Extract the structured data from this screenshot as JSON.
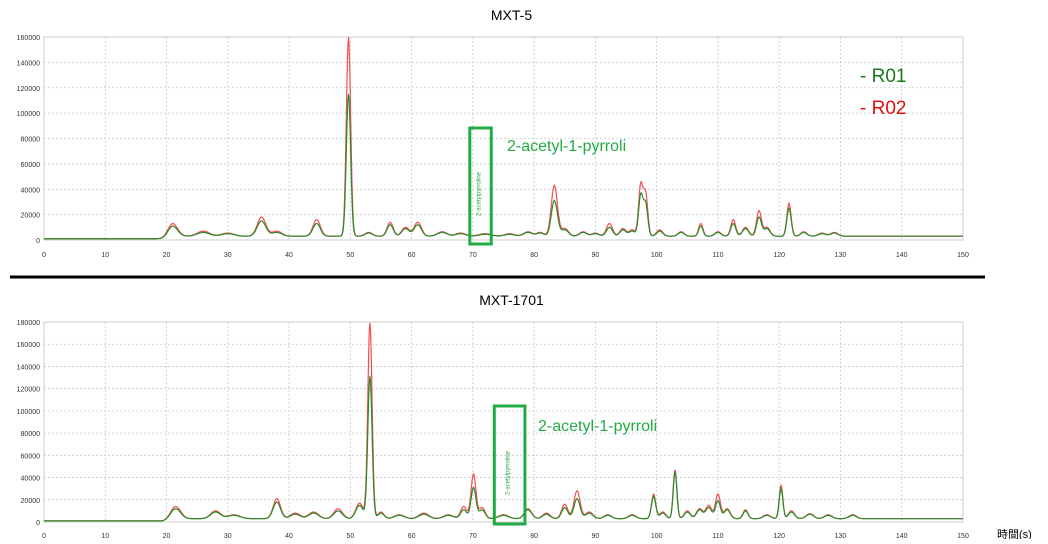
{
  "legend": [
    {
      "label": "- R01",
      "color": "#1a7a1a"
    },
    {
      "label": "- R02",
      "color": "#e01010"
    }
  ],
  "x_unit_label": "時間(s)",
  "colors": {
    "highlight": "#22aa44",
    "r01": "#2a8a2a",
    "r02": "#f05050",
    "grid": "#c8c8c8",
    "divider": "#000000"
  },
  "chart_data": [
    {
      "type": "line",
      "title": "MXT-5",
      "xlim": [
        0,
        150
      ],
      "ylim": [
        0,
        160000
      ],
      "x_ticks": [
        0,
        10,
        20,
        30,
        40,
        50,
        60,
        70,
        80,
        90,
        100,
        110,
        120,
        130,
        140,
        150
      ],
      "y_ticks": [
        0,
        20000,
        40000,
        60000,
        80000,
        100000,
        120000,
        140000,
        160000
      ],
      "annotation": {
        "label": "2-acetyl-1-pyrroli",
        "marker_text": "2-acetylpyrroline",
        "x_range": [
          69.5,
          73
        ]
      },
      "series": [
        {
          "name": "R01",
          "peaks": [
            [
              21,
              8000,
              0.8
            ],
            [
              26,
              3000,
              1
            ],
            [
              30,
              2000,
              1
            ],
            [
              35.5,
              12000,
              0.7
            ],
            [
              38,
              3000,
              0.8
            ],
            [
              44.5,
              10000,
              0.6
            ],
            [
              49.7,
              112000,
              0.35
            ],
            [
              53,
              2500,
              0.6
            ],
            [
              56.5,
              9000,
              0.5
            ],
            [
              59,
              6000,
              0.6
            ],
            [
              61,
              9000,
              0.6
            ],
            [
              65,
              3000,
              0.8
            ],
            [
              68,
              2000,
              0.8
            ],
            [
              72,
              1500,
              1
            ],
            [
              76,
              1500,
              0.8
            ],
            [
              79,
              3000,
              0.7
            ],
            [
              81,
              2500,
              0.6
            ],
            [
              83.3,
              28000,
              0.5
            ],
            [
              85,
              5000,
              0.6
            ],
            [
              88,
              3000,
              0.6
            ],
            [
              90,
              2000,
              0.6
            ],
            [
              92.3,
              7000,
              0.5
            ],
            [
              94.5,
              5000,
              0.5
            ],
            [
              96,
              4000,
              0.5
            ],
            [
              97.4,
              32000,
              0.35
            ],
            [
              98.2,
              25000,
              0.35
            ],
            [
              100.5,
              4000,
              0.5
            ],
            [
              104,
              3000,
              0.5
            ],
            [
              107.2,
              8000,
              0.35
            ],
            [
              110,
              3000,
              0.5
            ],
            [
              112.5,
              10000,
              0.4
            ],
            [
              114.5,
              6000,
              0.5
            ],
            [
              116.7,
              15000,
              0.4
            ],
            [
              118,
              6000,
              0.5
            ],
            [
              121.6,
              22000,
              0.35
            ],
            [
              124,
              3000,
              0.5
            ],
            [
              127,
              2000,
              0.6
            ],
            [
              129,
              2500,
              0.6
            ]
          ]
        },
        {
          "name": "R02",
          "peaks": [
            [
              21,
              10000,
              0.8
            ],
            [
              26,
              4000,
              1
            ],
            [
              30,
              2500,
              1
            ],
            [
              35.5,
              15000,
              0.7
            ],
            [
              38,
              4000,
              0.8
            ],
            [
              44.5,
              13000,
              0.6
            ],
            [
              49.7,
              157000,
              0.35
            ],
            [
              53,
              3000,
              0.6
            ],
            [
              56.5,
              11000,
              0.5
            ],
            [
              59,
              7000,
              0.6
            ],
            [
              61,
              11000,
              0.6
            ],
            [
              65,
              3500,
              0.8
            ],
            [
              68,
              2500,
              0.8
            ],
            [
              72,
              2000,
              1
            ],
            [
              76,
              2000,
              0.8
            ],
            [
              79,
              3500,
              0.7
            ],
            [
              81,
              3000,
              0.6
            ],
            [
              83.3,
              40000,
              0.5
            ],
            [
              85,
              6000,
              0.6
            ],
            [
              88,
              3500,
              0.6
            ],
            [
              90,
              2500,
              0.6
            ],
            [
              92.3,
              10000,
              0.5
            ],
            [
              94.5,
              6000,
              0.5
            ],
            [
              96,
              5000,
              0.5
            ],
            [
              97.4,
              40000,
              0.35
            ],
            [
              98.2,
              33000,
              0.35
            ],
            [
              100.5,
              5000,
              0.5
            ],
            [
              104,
              3500,
              0.5
            ],
            [
              107.2,
              10000,
              0.35
            ],
            [
              110,
              3500,
              0.5
            ],
            [
              112.5,
              13000,
              0.4
            ],
            [
              114.5,
              7000,
              0.5
            ],
            [
              116.7,
              20000,
              0.4
            ],
            [
              118,
              7000,
              0.5
            ],
            [
              121.6,
              26000,
              0.35
            ],
            [
              124,
              3500,
              0.5
            ],
            [
              127,
              2500,
              0.6
            ],
            [
              129,
              3000,
              0.6
            ]
          ]
        }
      ]
    },
    {
      "type": "line",
      "title": "MXT-1701",
      "xlim": [
        0,
        150
      ],
      "ylim": [
        0,
        180000
      ],
      "x_ticks": [
        0,
        10,
        20,
        30,
        40,
        50,
        60,
        70,
        80,
        90,
        100,
        110,
        120,
        130,
        140,
        150
      ],
      "y_ticks": [
        0,
        20000,
        40000,
        60000,
        80000,
        100000,
        120000,
        140000,
        160000,
        180000
      ],
      "annotation": {
        "label": "2-acetyl-1-pyrroli",
        "marker_text": "2-acetylpyrroline",
        "x_range": [
          73.5,
          78.5
        ]
      },
      "series": [
        {
          "name": "R01",
          "peaks": [
            [
              21.5,
              9000,
              0.8
            ],
            [
              28,
              6000,
              0.8
            ],
            [
              31,
              3000,
              1
            ],
            [
              38,
              15000,
              0.6
            ],
            [
              41,
              4000,
              0.8
            ],
            [
              44,
              5000,
              0.8
            ],
            [
              48,
              7000,
              0.7
            ],
            [
              51.5,
              12000,
              0.6
            ],
            [
              53.2,
              128000,
              0.35
            ],
            [
              55,
              5000,
              0.5
            ],
            [
              58,
              3000,
              0.8
            ],
            [
              62,
              4000,
              0.8
            ],
            [
              66,
              3000,
              0.8
            ],
            [
              68.5,
              8000,
              0.5
            ],
            [
              70.1,
              28000,
              0.4
            ],
            [
              71.5,
              8000,
              0.5
            ],
            [
              75,
              3000,
              0.8
            ],
            [
              79,
              8000,
              0.6
            ],
            [
              82,
              4000,
              0.6
            ],
            [
              85,
              10000,
              0.5
            ],
            [
              87,
              18000,
              0.5
            ],
            [
              89,
              5000,
              0.6
            ],
            [
              92,
              3000,
              0.6
            ],
            [
              96,
              3000,
              0.6
            ],
            [
              99.5,
              20000,
              0.35
            ],
            [
              101,
              5000,
              0.5
            ],
            [
              103,
              42000,
              0.3
            ],
            [
              105,
              6000,
              0.5
            ],
            [
              107,
              8000,
              0.5
            ],
            [
              108.5,
              10000,
              0.5
            ],
            [
              110,
              16000,
              0.4
            ],
            [
              111.5,
              8000,
              0.5
            ],
            [
              114.5,
              7000,
              0.4
            ],
            [
              118,
              3000,
              0.6
            ],
            [
              120.3,
              27000,
              0.3
            ],
            [
              122,
              6000,
              0.5
            ],
            [
              125,
              4000,
              0.6
            ],
            [
              128,
              3000,
              0.6
            ],
            [
              132,
              3000,
              0.6
            ]
          ]
        },
        {
          "name": "R02",
          "peaks": [
            [
              21.5,
              11000,
              0.8
            ],
            [
              28,
              7000,
              0.8
            ],
            [
              31,
              3500,
              1
            ],
            [
              38,
              18000,
              0.6
            ],
            [
              41,
              5000,
              0.8
            ],
            [
              44,
              6000,
              0.8
            ],
            [
              48,
              9000,
              0.7
            ],
            [
              51.5,
              14000,
              0.6
            ],
            [
              53.2,
              176000,
              0.35
            ],
            [
              55,
              6000,
              0.5
            ],
            [
              58,
              3500,
              0.8
            ],
            [
              62,
              5000,
              0.8
            ],
            [
              66,
              3500,
              0.8
            ],
            [
              68.5,
              11000,
              0.5
            ],
            [
              70.1,
              40000,
              0.4
            ],
            [
              71.5,
              10000,
              0.5
            ],
            [
              75,
              3500,
              0.8
            ],
            [
              79,
              9000,
              0.6
            ],
            [
              82,
              5000,
              0.6
            ],
            [
              85,
              13000,
              0.5
            ],
            [
              87,
              25000,
              0.5
            ],
            [
              89,
              6000,
              0.6
            ],
            [
              92,
              3500,
              0.6
            ],
            [
              96,
              3500,
              0.6
            ],
            [
              99.5,
              22000,
              0.35
            ],
            [
              101,
              6000,
              0.5
            ],
            [
              103,
              44000,
              0.3
            ],
            [
              105,
              7000,
              0.5
            ],
            [
              107,
              9000,
              0.5
            ],
            [
              108.5,
              12000,
              0.5
            ],
            [
              110,
              22000,
              0.4
            ],
            [
              111.5,
              9000,
              0.5
            ],
            [
              114.5,
              8000,
              0.4
            ],
            [
              118,
              3500,
              0.6
            ],
            [
              120.3,
              30000,
              0.3
            ],
            [
              122,
              7000,
              0.5
            ],
            [
              125,
              4500,
              0.6
            ],
            [
              128,
              3500,
              0.6
            ],
            [
              132,
              3500,
              0.6
            ]
          ]
        }
      ]
    }
  ]
}
